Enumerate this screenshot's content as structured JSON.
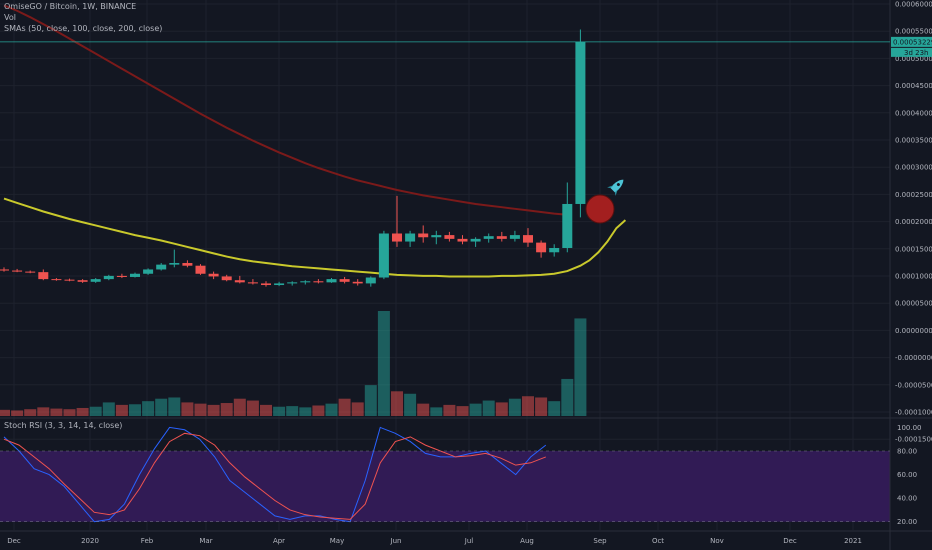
{
  "legend": {
    "main": "OmiseGO / Bitcoin, 1W, BINANCE",
    "vol": "Vol",
    "sma": "SMAs (50, close, 100, close, 200, close)",
    "stoch": "Stoch RSI (3, 3, 14, 14, close)"
  },
  "price_axis": [
    "0.0006000",
    "0.00055000",
    "0.0005000",
    "0.0004500",
    "0.0004000",
    "0.0003500",
    "0.0003000",
    "0.00025000",
    "0.0002000",
    "0.00015000",
    "0.0001000",
    "0.00005000",
    "0.0000000",
    "-0.0000000",
    "-0.0000500",
    "-0.0001000",
    "-0.00015000"
  ],
  "price_badge": "0.00053229",
  "countdown_badge": "3d 23h",
  "stoch_axis": [
    "100.00",
    "80.00",
    "60.00",
    "40.00",
    "20.00"
  ],
  "time_axis": [
    "Dec",
    "2020",
    "Feb",
    "Mar",
    "Apr",
    "May",
    "Jun",
    "Jul",
    "Aug",
    "Sep",
    "Oct",
    "Nov",
    "Dec",
    "2021"
  ],
  "colors": {
    "up": "#26a69a",
    "down": "#ef5350",
    "sma_long": "#7b1a1a",
    "sma_mid": "#c9c92c",
    "stoch_k": "#2962ff",
    "stoch_d": "#ef5350",
    "stoch_band": "#311b55",
    "grid": "#1e222d"
  },
  "annotations": {
    "circle": "red-circle-icon",
    "rocket": "rocket-icon"
  },
  "chart_data": {
    "type": "candlestick",
    "interval": "1W",
    "candles": [
      {
        "o": 0.000108,
        "h": 0.000112,
        "l": 0.000104,
        "c": 0.000106,
        "v": 10
      },
      {
        "o": 0.000106,
        "h": 0.000109,
        "l": 0.000103,
        "c": 0.000104,
        "v": 9
      },
      {
        "o": 0.000104,
        "h": 0.000106,
        "l": 0.000101,
        "c": 0.000103,
        "v": 11
      },
      {
        "o": 0.000103,
        "h": 0.000108,
        "l": 8.8e-05,
        "c": 9e-05,
        "v": 14
      },
      {
        "o": 9e-05,
        "h": 9.2e-05,
        "l": 8.7e-05,
        "c": 8.9e-05,
        "v": 12
      },
      {
        "o": 8.9e-05,
        "h": 9.1e-05,
        "l": 8.6e-05,
        "c": 8.8e-05,
        "v": 11
      },
      {
        "o": 8.8e-05,
        "h": 9e-05,
        "l": 8.3e-05,
        "c": 8.5e-05,
        "v": 13
      },
      {
        "o": 8.5e-05,
        "h": 9.2e-05,
        "l": 8.3e-05,
        "c": 9e-05,
        "v": 15
      },
      {
        "o": 9e-05,
        "h": 9.8e-05,
        "l": 8.8e-05,
        "c": 9.6e-05,
        "v": 22
      },
      {
        "o": 9.6e-05,
        "h": 0.0001,
        "l": 9.2e-05,
        "c": 9.4e-05,
        "v": 18
      },
      {
        "o": 9.4e-05,
        "h": 0.000102,
        "l": 9.3e-05,
        "c": 0.0001,
        "v": 19
      },
      {
        "o": 0.0001,
        "h": 0.00011,
        "l": 9.8e-05,
        "c": 0.000108,
        "v": 24
      },
      {
        "o": 0.000108,
        "h": 0.00012,
        "l": 0.000106,
        "c": 0.000117,
        "v": 28
      },
      {
        "o": 0.000117,
        "h": 0.000145,
        "l": 0.000112,
        "c": 0.00012,
        "v": 30
      },
      {
        "o": 0.00012,
        "h": 0.000125,
        "l": 0.000112,
        "c": 0.000115,
        "v": 22
      },
      {
        "o": 0.000115,
        "h": 0.000118,
        "l": 9.8e-05,
        "c": 0.0001,
        "v": 20
      },
      {
        "o": 0.0001,
        "h": 0.000104,
        "l": 9e-05,
        "c": 9.5e-05,
        "v": 18
      },
      {
        "o": 9.5e-05,
        "h": 9.8e-05,
        "l": 8.6e-05,
        "c": 8.8e-05,
        "v": 21
      },
      {
        "o": 8.8e-05,
        "h": 9.6e-05,
        "l": 8.2e-05,
        "c": 8.4e-05,
        "v": 28
      },
      {
        "o": 8.4e-05,
        "h": 9e-05,
        "l": 8e-05,
        "c": 8.2e-05,
        "v": 25
      },
      {
        "o": 8.2e-05,
        "h": 8.6e-05,
        "l": 7.6e-05,
        "c": 7.9e-05,
        "v": 18
      },
      {
        "o": 7.9e-05,
        "h": 8.5e-05,
        "l": 7.7e-05,
        "c": 8.2e-05,
        "v": 15
      },
      {
        "o": 8.2e-05,
        "h": 8.6e-05,
        "l": 7.8e-05,
        "c": 8.4e-05,
        "v": 16
      },
      {
        "o": 8.4e-05,
        "h": 8.8e-05,
        "l": 8e-05,
        "c": 8.6e-05,
        "v": 14
      },
      {
        "o": 8.6e-05,
        "h": 9e-05,
        "l": 8.2e-05,
        "c": 8.4e-05,
        "v": 17
      },
      {
        "o": 8.4e-05,
        "h": 9.2e-05,
        "l": 8.3e-05,
        "c": 9e-05,
        "v": 20
      },
      {
        "o": 9e-05,
        "h": 9.4e-05,
        "l": 8.2e-05,
        "c": 8.5e-05,
        "v": 28
      },
      {
        "o": 8.5e-05,
        "h": 9e-05,
        "l": 7.8e-05,
        "c": 8.2e-05,
        "v": 22
      },
      {
        "o": 8.2e-05,
        "h": 9.5e-05,
        "l": 7.6e-05,
        "c": 9.3e-05,
        "v": 50
      },
      {
        "o": 9.3e-05,
        "h": 0.00018,
        "l": 9e-05,
        "c": 0.000175,
        "v": 170
      },
      {
        "o": 0.000175,
        "h": 0.000245,
        "l": 0.00015,
        "c": 0.00016,
        "v": 40
      },
      {
        "o": 0.00016,
        "h": 0.00018,
        "l": 0.00015,
        "c": 0.000175,
        "v": 36
      },
      {
        "o": 0.000175,
        "h": 0.00019,
        "l": 0.000158,
        "c": 0.000168,
        "v": 20
      },
      {
        "o": 0.000168,
        "h": 0.00018,
        "l": 0.000155,
        "c": 0.000172,
        "v": 14
      },
      {
        "o": 0.000172,
        "h": 0.000178,
        "l": 0.00016,
        "c": 0.000165,
        "v": 18
      },
      {
        "o": 0.000165,
        "h": 0.000172,
        "l": 0.000155,
        "c": 0.00016,
        "v": 16
      },
      {
        "o": 0.00016,
        "h": 0.000168,
        "l": 0.00015,
        "c": 0.000165,
        "v": 20
      },
      {
        "o": 0.000165,
        "h": 0.000175,
        "l": 0.000158,
        "c": 0.00017,
        "v": 25
      },
      {
        "o": 0.00017,
        "h": 0.000178,
        "l": 0.00016,
        "c": 0.000165,
        "v": 22
      },
      {
        "o": 0.000165,
        "h": 0.00018,
        "l": 0.00016,
        "c": 0.000172,
        "v": 28
      },
      {
        "o": 0.000172,
        "h": 0.000185,
        "l": 0.00015,
        "c": 0.000158,
        "v": 32
      },
      {
        "o": 0.000158,
        "h": 0.000162,
        "l": 0.00013,
        "c": 0.00014,
        "v": 30
      },
      {
        "o": 0.00014,
        "h": 0.000155,
        "l": 0.000132,
        "c": 0.000148,
        "v": 24
      },
      {
        "o": 0.000148,
        "h": 0.00027,
        "l": 0.00014,
        "c": 0.00023,
        "v": 60
      },
      {
        "o": 0.00023,
        "h": 0.000555,
        "l": 0.000205,
        "c": 0.000532,
        "v": 158
      }
    ],
    "sma_mid": [
      0.00024,
      0.000232,
      0.000224,
      0.000216,
      0.000209,
      0.000202,
      0.000196,
      0.00019,
      0.000184,
      0.000178,
      0.000172,
      0.000167,
      0.000162,
      0.000156,
      0.00015,
      0.000144,
      0.000138,
      0.000132,
      0.000127,
      0.000123,
      0.00012,
      0.000117,
      0.000114,
      0.000112,
      0.00011,
      0.000108,
      0.000106,
      0.000104,
      0.000102,
      0.0001,
      9.8e-05,
      9.7e-05,
      9.6e-05,
      9.6e-05,
      9.5e-05,
      9.5e-05,
      9.5e-05,
      9.5e-05,
      9.6e-05,
      9.6e-05,
      9.7e-05,
      9.8e-05,
      0.0001,
      0.000105,
      0.000115
    ],
    "sma_mid_ext": [
      0.000125,
      0.00014,
      0.00016,
      0.000185,
      0.0002
    ],
    "sma_long": [
      0.0006,
      0.00059,
      0.000578,
      0.000565,
      0.000552,
      0.000538,
      0.000524,
      0.00051,
      0.000496,
      0.000482,
      0.000468,
      0.000454,
      0.00044,
      0.000426,
      0.000412,
      0.000398,
      0.000385,
      0.000372,
      0.00036,
      0.000348,
      0.000337,
      0.000326,
      0.000316,
      0.000306,
      0.000297,
      0.000289,
      0.000281,
      0.000274,
      0.000268,
      0.000262,
      0.000256,
      0.000251,
      0.000246,
      0.000242,
      0.000238,
      0.000234,
      0.00023,
      0.000227,
      0.000224,
      0.000221,
      0.000218,
      0.000215,
      0.000212,
      0.00021
    ],
    "stoch_k": [
      92,
      80,
      65,
      60,
      50,
      35,
      20,
      22,
      35,
      60,
      82,
      100,
      98,
      90,
      75,
      55,
      45,
      35,
      25,
      22,
      25,
      25,
      22,
      20,
      55,
      100,
      95,
      88,
      78,
      75,
      75,
      78,
      80,
      70,
      60,
      75,
      85
    ],
    "stoch_d": [
      90,
      85,
      75,
      65,
      52,
      40,
      28,
      26,
      30,
      48,
      70,
      88,
      95,
      93,
      85,
      70,
      58,
      48,
      38,
      30,
      26,
      24,
      23,
      22,
      35,
      70,
      88,
      92,
      85,
      80,
      75,
      76,
      78,
      74,
      68,
      70,
      75
    ],
    "price_range": [
      -0.000165,
      0.00061
    ],
    "stoch_range": [
      13,
      108
    ]
  }
}
